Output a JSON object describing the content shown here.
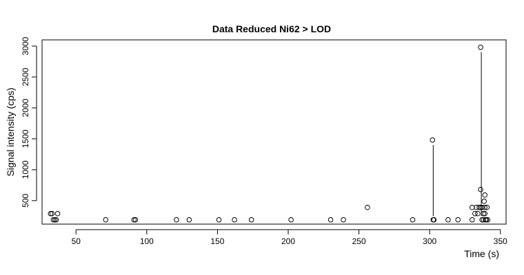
{
  "chart_data": {
    "type": "scatter",
    "title": "Data Reduced Ni62 > LOD",
    "xlabel": "Time (s)",
    "ylabel": "Signal intensity (cps)",
    "xlim": [
      26,
      354
    ],
    "ylim": [
      120,
      3100
    ],
    "x_ticks": [
      50,
      100,
      150,
      200,
      250,
      300,
      350
    ],
    "y_ticks": [
      500,
      1000,
      1500,
      2000,
      2500,
      3000
    ],
    "grid": false,
    "points": [
      {
        "x": 32,
        "y": 290
      },
      {
        "x": 33,
        "y": 290
      },
      {
        "x": 34,
        "y": 190
      },
      {
        "x": 35,
        "y": 190
      },
      {
        "x": 36,
        "y": 190
      },
      {
        "x": 37,
        "y": 290
      },
      {
        "x": 71,
        "y": 190
      },
      {
        "x": 91,
        "y": 190
      },
      {
        "x": 92,
        "y": 190
      },
      {
        "x": 121,
        "y": 190
      },
      {
        "x": 130,
        "y": 190
      },
      {
        "x": 151,
        "y": 190
      },
      {
        "x": 162,
        "y": 190
      },
      {
        "x": 174,
        "y": 190
      },
      {
        "x": 202,
        "y": 190
      },
      {
        "x": 230,
        "y": 190
      },
      {
        "x": 239,
        "y": 190
      },
      {
        "x": 256,
        "y": 390
      },
      {
        "x": 288,
        "y": 190
      },
      {
        "x": 302,
        "y": 1480
      },
      {
        "x": 302.5,
        "y": 190
      },
      {
        "x": 303,
        "y": 190
      },
      {
        "x": 313,
        "y": 190
      },
      {
        "x": 320,
        "y": 190
      },
      {
        "x": 330,
        "y": 390
      },
      {
        "x": 330,
        "y": 190
      },
      {
        "x": 332,
        "y": 290
      },
      {
        "x": 333,
        "y": 390
      },
      {
        "x": 334,
        "y": 290
      },
      {
        "x": 335,
        "y": 390
      },
      {
        "x": 336,
        "y": 2980
      },
      {
        "x": 336,
        "y": 680
      },
      {
        "x": 336,
        "y": 390
      },
      {
        "x": 337,
        "y": 390
      },
      {
        "x": 337,
        "y": 190
      },
      {
        "x": 338,
        "y": 190
      },
      {
        "x": 338,
        "y": 290
      },
      {
        "x": 338.5,
        "y": 490
      },
      {
        "x": 339,
        "y": 590
      },
      {
        "x": 339,
        "y": 390
      },
      {
        "x": 339,
        "y": 290
      },
      {
        "x": 339.5,
        "y": 190
      },
      {
        "x": 340,
        "y": 190
      },
      {
        "x": 340.5,
        "y": 390
      },
      {
        "x": 341,
        "y": 190
      }
    ],
    "segments": [
      {
        "x1": 302.5,
        "y1": 1400,
        "x2": 302.5,
        "y2": 250
      },
      {
        "x1": 336.5,
        "y1": 2900,
        "x2": 336.5,
        "y2": 250
      }
    ]
  }
}
